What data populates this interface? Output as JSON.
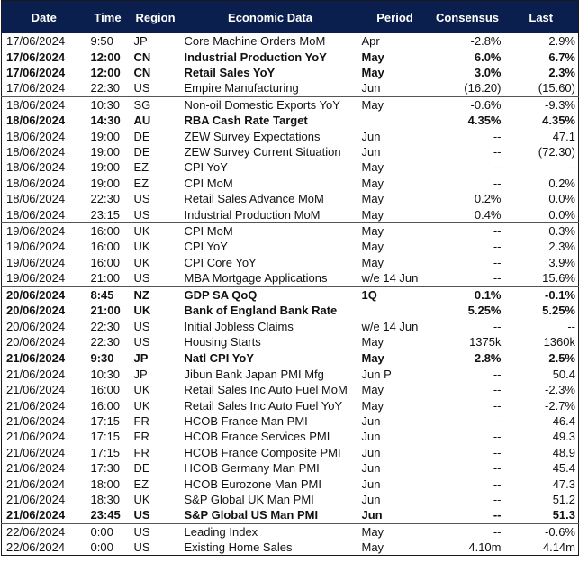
{
  "table": {
    "header": [
      "Date",
      "Time",
      "Region",
      "Economic Data",
      "Period",
      "Consensus",
      "Last"
    ],
    "rows": [
      {
        "cells": [
          "17/06/2024",
          "9:50",
          "JP",
          "Core Machine Orders MoM",
          "Apr",
          "-2.8%",
          "2.9%"
        ]
      },
      {
        "cells": [
          "17/06/2024",
          "12:00",
          "CN",
          "Industrial Production YoY",
          "May",
          "6.0%",
          "6.7%"
        ],
        "bold": true
      },
      {
        "cells": [
          "17/06/2024",
          "12:00",
          "CN",
          "Retail Sales YoY",
          "May",
          "3.0%",
          "2.3%"
        ],
        "bold": true
      },
      {
        "cells": [
          "17/06/2024",
          "22:30",
          "US",
          "Empire Manufacturing",
          "Jun",
          "(16.20)",
          "(15.60)"
        ]
      },
      {
        "cells": [
          "18/06/2024",
          "10:30",
          "SG",
          "Non-oil Domestic Exports YoY",
          "May",
          "-0.6%",
          "-9.3%"
        ]
      },
      {
        "cells": [
          "18/06/2024",
          "14:30",
          "AU",
          "RBA Cash Rate Target",
          null,
          "4.35%",
          "4.35%"
        ],
        "bold": true
      },
      {
        "cells": [
          "18/06/2024",
          "19:00",
          "DE",
          "ZEW Survey Expectations",
          "Jun",
          "--",
          "47.1"
        ]
      },
      {
        "cells": [
          "18/06/2024",
          "19:00",
          "DE",
          "ZEW Survey Current Situation",
          "Jun",
          "--",
          "(72.30)"
        ]
      },
      {
        "cells": [
          "18/06/2024",
          "19:00",
          "EZ",
          "CPI YoY",
          "May",
          "--",
          "--"
        ]
      },
      {
        "cells": [
          "18/06/2024",
          "19:00",
          "EZ",
          "CPI MoM",
          "May",
          "--",
          "0.2%"
        ]
      },
      {
        "cells": [
          "18/06/2024",
          "22:30",
          "US",
          "Retail Sales Advance MoM",
          "May",
          "0.2%",
          "0.0%"
        ]
      },
      {
        "cells": [
          "18/06/2024",
          "23:15",
          "US",
          "Industrial Production MoM",
          "May",
          "0.4%",
          "0.0%"
        ]
      },
      {
        "cells": [
          "19/06/2024",
          "16:00",
          "UK",
          "CPI MoM",
          "May",
          "--",
          "0.3%"
        ]
      },
      {
        "cells": [
          "19/06/2024",
          "16:00",
          "UK",
          "CPI YoY",
          "May",
          "--",
          "2.3%"
        ]
      },
      {
        "cells": [
          "19/06/2024",
          "16:00",
          "UK",
          "CPI Core YoY",
          "May",
          "--",
          "3.9%"
        ]
      },
      {
        "cells": [
          "19/06/2024",
          "21:00",
          "US",
          "MBA Mortgage Applications",
          "w/e 14 Jun",
          "--",
          "15.6%"
        ]
      },
      {
        "cells": [
          "20/06/2024",
          "8:45",
          "NZ",
          "GDP SA QoQ",
          "1Q",
          "0.1%",
          "-0.1%"
        ],
        "bold": true
      },
      {
        "cells": [
          "20/06/2024",
          "21:00",
          "UK",
          "Bank of England Bank Rate",
          null,
          "5.25%",
          "5.25%"
        ],
        "bold": true
      },
      {
        "cells": [
          "20/06/2024",
          "22:30",
          "US",
          "Initial Jobless Claims",
          "w/e 14 Jun",
          "--",
          "--"
        ]
      },
      {
        "cells": [
          "20/06/2024",
          "22:30",
          "US",
          "Housing Starts",
          "May",
          "1375k",
          "1360k"
        ]
      },
      {
        "cells": [
          "21/06/2024",
          "9:30",
          "JP",
          "Natl CPI YoY",
          "May",
          "2.8%",
          "2.5%"
        ],
        "bold": true
      },
      {
        "cells": [
          "21/06/2024",
          "10:30",
          "JP",
          "Jibun Bank Japan PMI Mfg",
          "Jun P",
          "--",
          "50.4"
        ]
      },
      {
        "cells": [
          "21/06/2024",
          "16:00",
          "UK",
          "Retail Sales Inc Auto Fuel MoM",
          "May",
          "--",
          "-2.3%"
        ]
      },
      {
        "cells": [
          "21/06/2024",
          "16:00",
          "UK",
          "Retail Sales Inc Auto Fuel YoY",
          "May",
          "--",
          "-2.7%"
        ]
      },
      {
        "cells": [
          "21/06/2024",
          "17:15",
          "FR",
          "HCOB France Man PMI",
          "Jun",
          "--",
          "46.4"
        ]
      },
      {
        "cells": [
          "21/06/2024",
          "17:15",
          "FR",
          "HCOB France Services PMI",
          "Jun",
          "--",
          "49.3"
        ]
      },
      {
        "cells": [
          "21/06/2024",
          "17:15",
          "FR",
          "HCOB France Composite PMI",
          "Jun",
          "--",
          "48.9"
        ]
      },
      {
        "cells": [
          "21/06/2024",
          "17:30",
          "DE",
          "HCOB Germany Man PMI",
          "Jun",
          "--",
          "45.4"
        ]
      },
      {
        "cells": [
          "21/06/2024",
          "18:00",
          "EZ",
          "HCOB Eurozone Man PMI",
          "Jun",
          "--",
          "47.3"
        ]
      },
      {
        "cells": [
          "21/06/2024",
          "18:30",
          "UK",
          "S&P Global UK Man PMI",
          "Jun",
          "--",
          "51.2"
        ]
      },
      {
        "cells": [
          "21/06/2024",
          "23:45",
          "US",
          "S&P Global US Man PMI",
          "Jun",
          "--",
          "51.3"
        ],
        "bold": true
      },
      {
        "cells": [
          "22/06/2024",
          "0:00",
          "US",
          "Leading Index",
          "May",
          "--",
          "-0.6%"
        ]
      },
      {
        "cells": [
          "22/06/2024",
          "0:00",
          "US",
          "Existing Home Sales",
          "May",
          "4.10m",
          "4.14m"
        ]
      }
    ]
  }
}
